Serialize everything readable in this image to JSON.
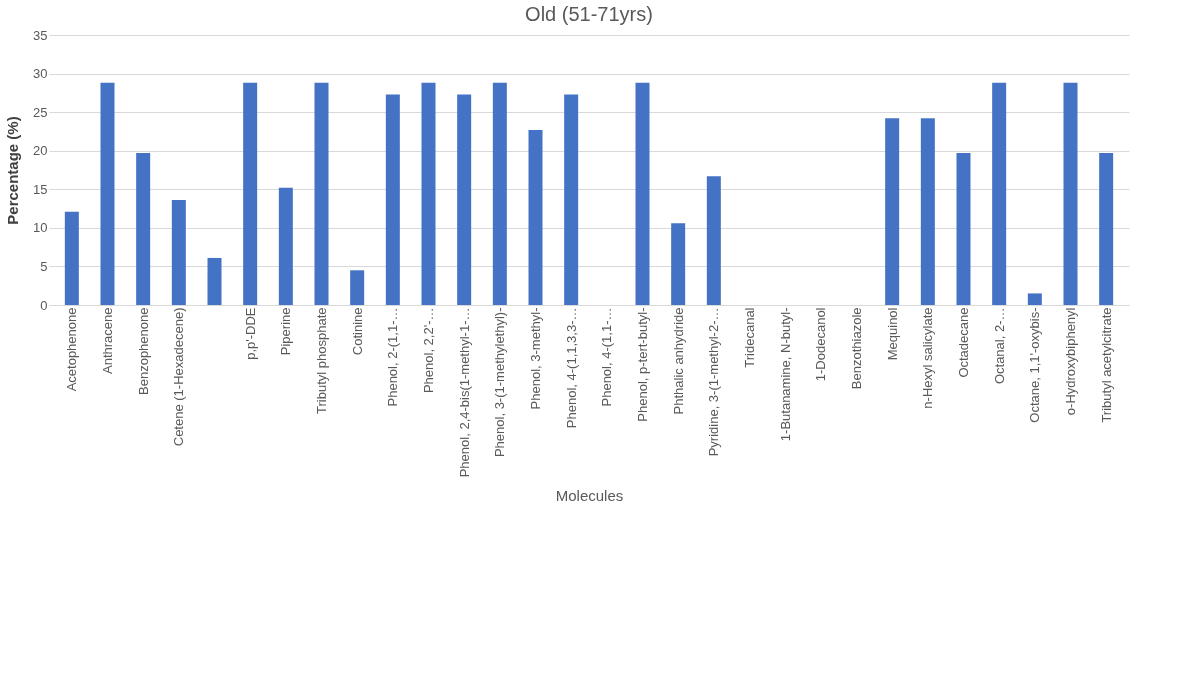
{
  "chart_data": {
    "type": "bar",
    "title": "Old (51-71yrs)",
    "xlabel": "Molecules",
    "ylabel": "Percentage (%)",
    "categories": [
      "Acetophenone",
      "Anthracene",
      "Benzophenone",
      "Cetene (1-Hexadecene)",
      null,
      "p,p'-DDE",
      "Piperine",
      "Tributyl phosphate",
      "Cotinine",
      "Phenol, 2-(1,1-…",
      "Phenol, 2,2'-…",
      "Phenol, 2,4-bis(1-methyl-1-…",
      "Phenol, 3-(1-methylethyl)-",
      "Phenol, 3-methyl-",
      "Phenol, 4-(1,1,3,3-…",
      "Phenol, 4-(1,1-…",
      "Phenol, p-tert-butyl-",
      "Phthalic anhydride",
      "Pyridine, 3-(1-methyl-2-…",
      "Tridecanal",
      "1-Butanamine, N-butyl-",
      "1-Dodecanol",
      "Benzothiazole",
      "Mequinol",
      "n-Hexyl salicylate",
      "Octadecane",
      "Octanal, 2-…",
      "Octane, 1,1'-oxybis-",
      "o-Hydroxybiphenyl",
      "Tributyl acetylcitrate"
    ],
    "values": [
      12.1,
      28.8,
      19.7,
      13.6,
      6.1,
      28.8,
      15.2,
      28.8,
      4.5,
      27.3,
      28.8,
      27.3,
      28.8,
      22.7,
      27.3,
      0,
      28.8,
      10.6,
      16.7,
      0,
      0,
      0,
      0,
      24.2,
      24.2,
      19.7,
      28.8,
      1.5,
      28.8,
      19.7
    ],
    "color": "#4472c4",
    "ylim": [
      0,
      35
    ],
    "yticks": [
      0,
      5,
      10,
      15,
      20,
      25,
      30,
      35
    ],
    "grid": "y"
  }
}
